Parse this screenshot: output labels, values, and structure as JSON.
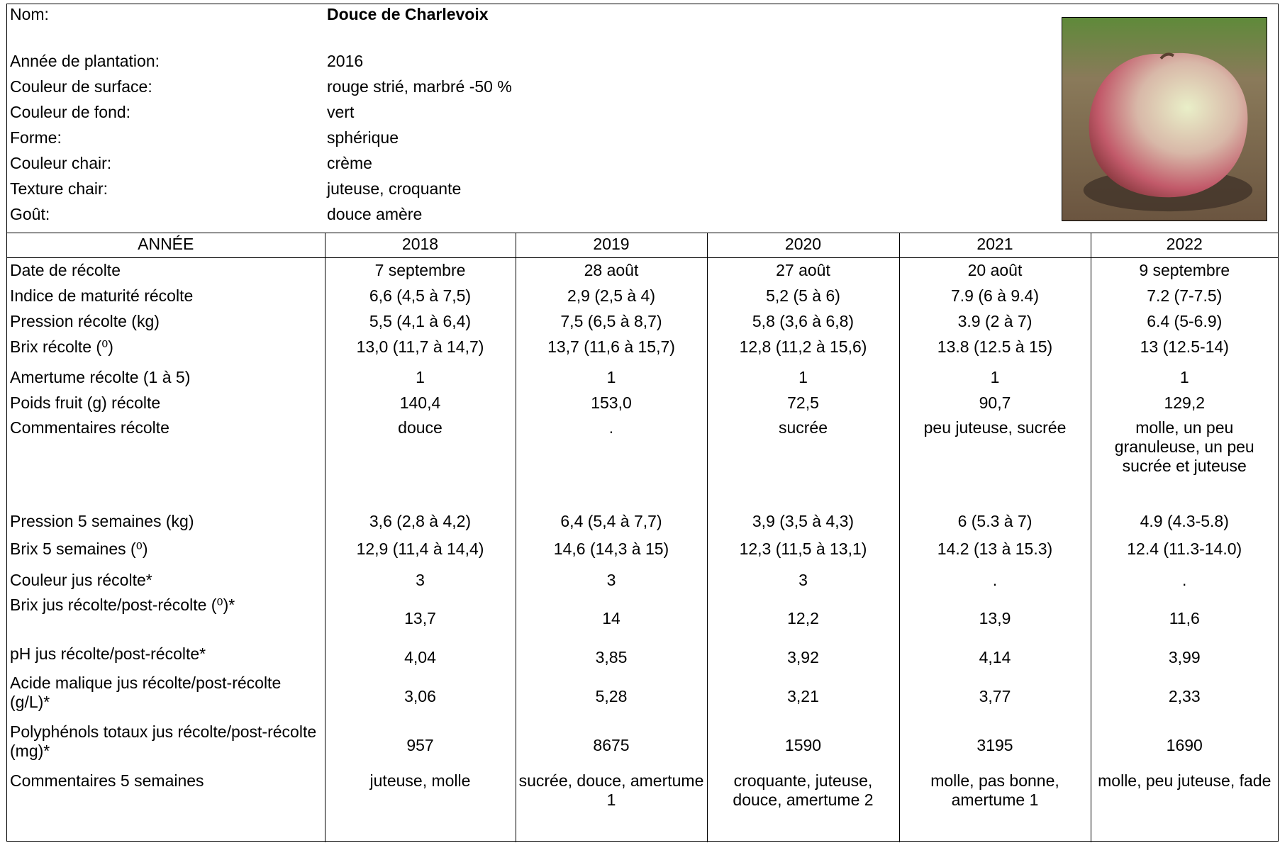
{
  "header": {
    "fields": [
      {
        "label": "Nom:",
        "value": "Douce de Charlevoix"
      },
      {
        "label": "Année de plantation:",
        "value": "2016"
      },
      {
        "label": "Couleur de surface:",
        "value": "rouge strié, marbré -50 %"
      },
      {
        "label": "Couleur de fond:",
        "value": "vert"
      },
      {
        "label": "Forme:",
        "value": "sphérique"
      },
      {
        "label": "Couleur chair:",
        "value": "crème"
      },
      {
        "label": "Texture chair:",
        "value": "juteuse, croquante"
      },
      {
        "label": "Goût:",
        "value": "douce amère"
      }
    ]
  },
  "table": {
    "columns": [
      "ANNÉE",
      "2018",
      "2019",
      "2020",
      "2021",
      "2022"
    ],
    "rows": [
      [
        "Date de récolte",
        "7 septembre",
        "28 août",
        "27 août",
        "20 août",
        "9 septembre"
      ],
      [
        "Indice de maturité récolte",
        "6,6 (4,5 à 7,5)",
        "2,9 (2,5 à 4)",
        "5,2 (5 à 6)",
        "7.9 (6 à 9.4)",
        "7.2 (7-7.5)"
      ],
      [
        "Pression récolte (kg)",
        "5,5 (4,1 à 6,4)",
        "7,5 (6,5 à 8,7)",
        "5,8 (3,6 à 6,8)",
        "3.9 (2 à 7)",
        "6.4 (5-6.9)"
      ],
      [
        "Brix récolte (⁰)",
        "13,0 (11,7 à 14,7)",
        "13,7 (11,6 à 15,7)",
        "12,8 (11,2 à 15,6)",
        "13.8 (12.5 à 15)",
        "13 (12.5-14)"
      ],
      [
        "Amertume récolte  (1 à 5)",
        "1",
        "1",
        "1",
        "1",
        "1"
      ],
      [
        "Poids fruit (g) récolte",
        "140,4",
        "153,0",
        "72,5",
        "90,7",
        "129,2"
      ],
      [
        "Commentaires récolte",
        "douce",
        ".",
        "sucrée",
        "peu juteuse, sucrée",
        "molle, un peu granuleuse, un peu sucrée et juteuse"
      ],
      [
        "Pression 5 semaines (kg)",
        "3,6 (2,8 à 4,2)",
        "6,4 (5,4 à 7,7)",
        "3,9 (3,5 à 4,3)",
        "6 (5.3 à 7)",
        "4.9 (4.3-5.8)"
      ],
      [
        "Brix 5 semaines (⁰)",
        "12,9 (11,4 à 14,4)",
        "14,6 (14,3 à 15)",
        "12,3 (11,5 à 13,1)",
        "14.2 (13 à 15.3)",
        "12.4 (11.3-14.0)"
      ],
      [
        "Couleur jus récolte*",
        "3",
        "3",
        "3",
        ".",
        "."
      ],
      [
        "Brix jus récolte/post-récolte (⁰)*",
        "13,7",
        "14",
        "12,2",
        "13,9",
        "11,6"
      ],
      [
        "pH jus récolte/post-récolte*",
        "4,04",
        "3,85",
        "3,92",
        "4,14",
        "3,99"
      ],
      [
        "Acide malique jus récolte/post-récolte (g/L)*",
        "3,06",
        "5,28",
        "3,21",
        "3,77",
        "2,33"
      ],
      [
        "Polyphénols totaux jus récolte/post-récolte (mg)*",
        "957",
        "8675",
        "1590",
        "3195",
        "1690"
      ],
      [
        "Commentaires 5 semaines",
        "juteuse, molle",
        "sucrée, douce, amertume 1",
        "croquante, juteuse, douce, amertume 2",
        "molle, pas bonne, amertume 1",
        "molle, peu juteuse, fade"
      ]
    ]
  }
}
